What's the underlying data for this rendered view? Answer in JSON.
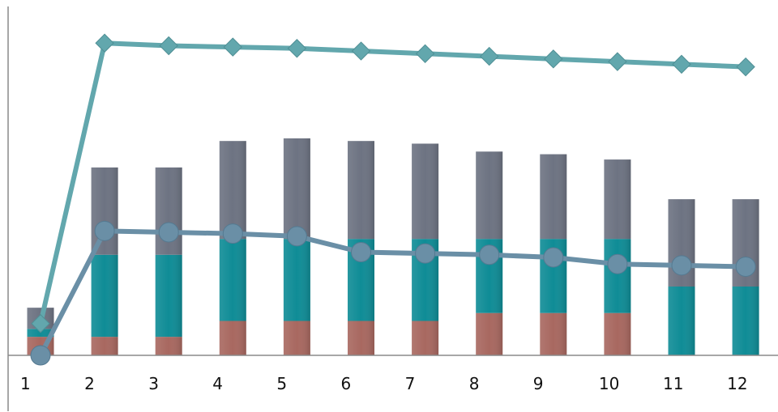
{
  "chart_data": {
    "type": "bar",
    "stacked": true,
    "categories": [
      "1",
      "2",
      "3",
      "4",
      "5",
      "6",
      "7",
      "8",
      "9",
      "10",
      "11",
      "12"
    ],
    "series": [
      {
        "color": "#a86860",
        "values": [
          7,
          7,
          7,
          13,
          13,
          13,
          13,
          16,
          16,
          16,
          0,
          0
        ]
      },
      {
        "color": "#0f8c96",
        "values": [
          3,
          31,
          31,
          31,
          31,
          31,
          31,
          28,
          28,
          28,
          26,
          26
        ]
      },
      {
        "color": "#6d7382",
        "values": [
          8,
          33,
          33,
          37,
          38,
          37,
          36,
          33,
          32,
          30,
          33,
          33
        ]
      }
    ],
    "line_series": [
      {
        "color": "#62a7ad",
        "marker": "diamond",
        "values": [
          12,
          118,
          117,
          116.5,
          116,
          115,
          114,
          113,
          112,
          111,
          110,
          109
        ]
      },
      {
        "color": "#6a8fa6",
        "marker": "circle",
        "values": [
          0,
          47,
          46.5,
          46,
          45,
          39,
          38.5,
          38,
          37,
          34.5,
          34,
          33.5
        ]
      }
    ],
    "ylim": [
      0,
      130
    ],
    "grid": false,
    "legend": "none",
    "axis_color": "#8a8a8a"
  }
}
